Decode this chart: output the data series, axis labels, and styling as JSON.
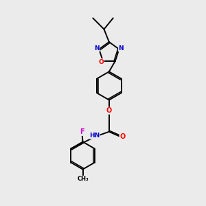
{
  "bg_color": "#ebebeb",
  "bond_color": "#000000",
  "figsize": [
    3.0,
    3.0
  ],
  "dpi": 100,
  "atom_colors": {
    "N": "#0000cc",
    "O": "#ff0000",
    "F": "#cc00cc",
    "C": "#000000"
  }
}
